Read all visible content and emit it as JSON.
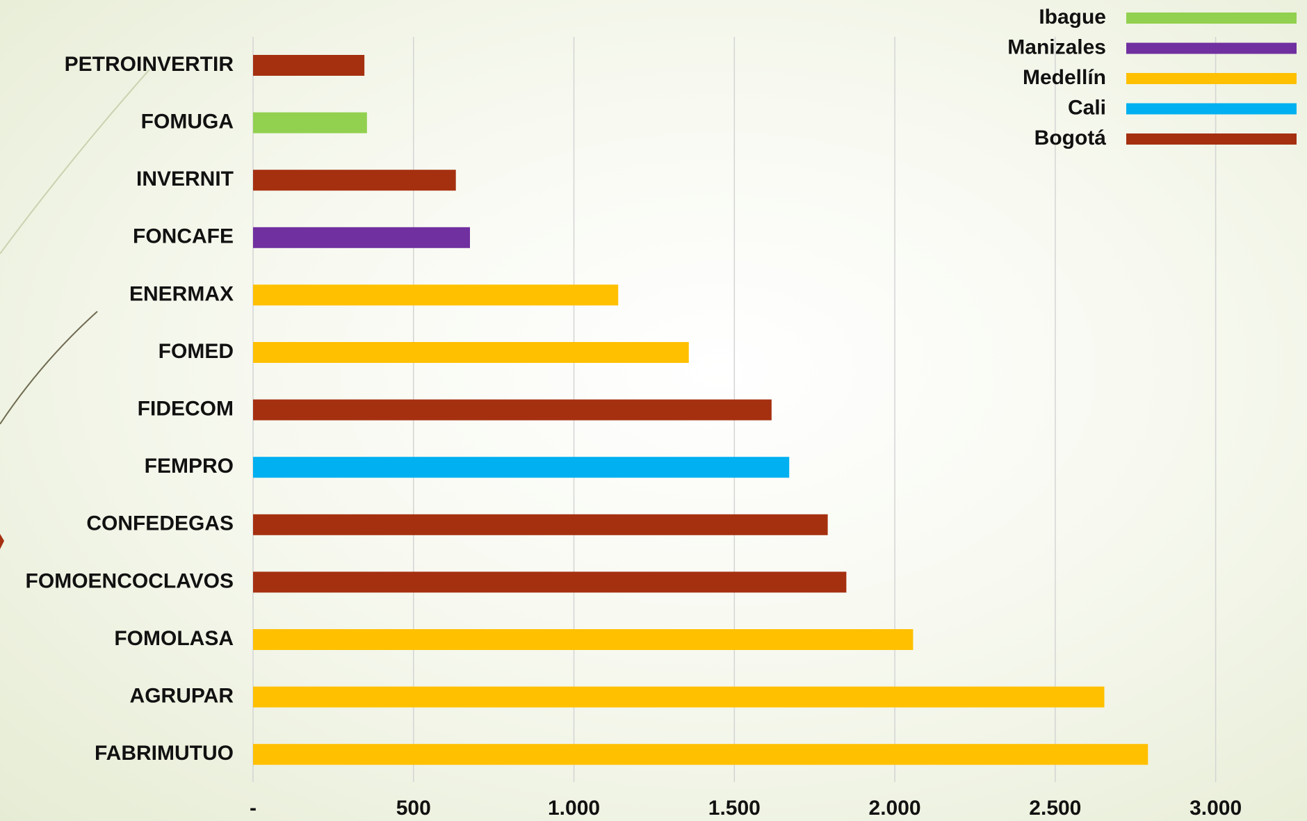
{
  "chart_data": {
    "type": "bar",
    "orientation": "horizontal",
    "categories": [
      "PETROINVERTIR",
      "FOMUGA",
      "INVERNIT",
      "FONCAFE",
      "ENERMAX",
      "FOMED",
      "FIDECOM",
      "FEMPRO",
      "CONFEDEGAS",
      "FOMOENCOCLAVOS",
      "FOMOLASA",
      "AGRUPAR",
      "FABRIMUTUO"
    ],
    "series": [
      {
        "name": "Ibague",
        "color": "#92d050",
        "values": [
          null,
          355,
          null,
          null,
          null,
          null,
          null,
          null,
          null,
          null,
          null,
          null,
          null
        ]
      },
      {
        "name": "Manizales",
        "color": "#7030a0",
        "values": [
          null,
          null,
          null,
          676,
          null,
          null,
          null,
          null,
          null,
          null,
          null,
          null,
          null
        ]
      },
      {
        "name": "Medellín",
        "color": "#ffc000",
        "values": [
          null,
          null,
          null,
          null,
          1138,
          1358,
          null,
          null,
          null,
          null,
          2057,
          2653,
          2789
        ]
      },
      {
        "name": "Cali",
        "color": "#00b0f0",
        "values": [
          null,
          null,
          null,
          null,
          null,
          null,
          null,
          1671,
          null,
          null,
          null,
          null,
          null
        ]
      },
      {
        "name": "Bogotá",
        "color": "#a53010",
        "values": [
          347,
          null,
          632,
          null,
          null,
          null,
          1616,
          null,
          1791,
          1849,
          null,
          null,
          null
        ]
      }
    ],
    "xlim": [
      0,
      3250
    ],
    "xticks": [
      {
        "value": 0,
        "label": "-"
      },
      500,
      {
        "value": 1000,
        "label": "1.000"
      },
      {
        "value": 1500,
        "label": "1.500"
      },
      {
        "value": 2000,
        "label": "2.000"
      },
      {
        "value": 2500,
        "label": "2.500"
      },
      {
        "value": 3000,
        "label": "3.000"
      }
    ],
    "grid": true,
    "legend": "top-right"
  }
}
